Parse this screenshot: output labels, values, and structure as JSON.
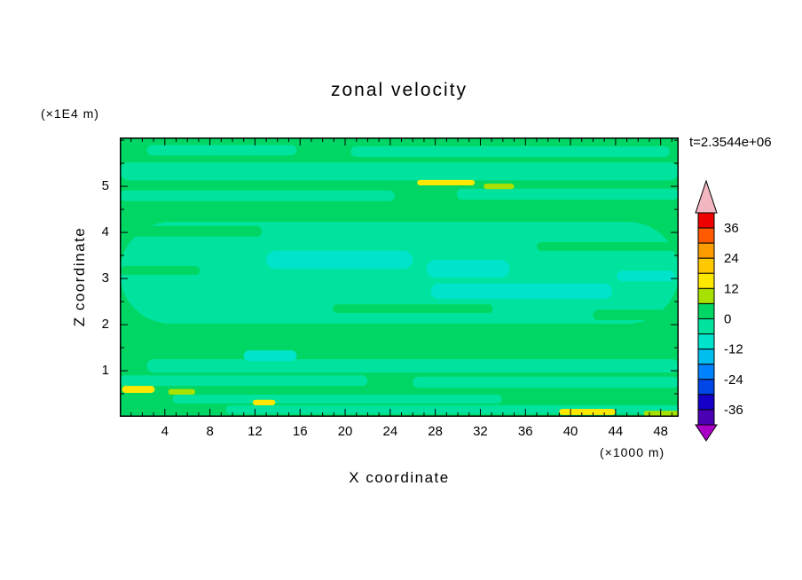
{
  "title": "zonal velocity",
  "labels": {
    "y_unit": "(×1E4 m)",
    "x_unit": "(×1000 m)",
    "time": "t=2.3544e+06",
    "x_axis": "X coordinate",
    "y_axis": "Z coordinate"
  },
  "chart_data": {
    "type": "heatmap",
    "title": "zonal velocity",
    "xlabel": "X coordinate",
    "ylabel": "Z coordinate",
    "x_unit_note": "(×1000 m)",
    "y_unit_note": "(×1E4 m)",
    "time_annotation": "t=2.3544e+06",
    "x_range": [
      0,
      49.6
    ],
    "z_range": [
      0,
      6.06
    ],
    "x_ticks": [
      4,
      8,
      12,
      16,
      20,
      24,
      28,
      32,
      36,
      40,
      44,
      48
    ],
    "x_minor_step": 1,
    "y_ticks": [
      1,
      2,
      3,
      4,
      5
    ],
    "y_minor_step": 0.5,
    "contour_interval": 6,
    "base_band": "green",
    "band_colors": {
      "green": "#00D663",
      "mint": "#00E39E",
      "cyan": "#00E4CC",
      "yellow": "#FFE800",
      "yellow_green": "#A8E000"
    },
    "regions": [
      {
        "x0": 2.4,
        "x1": 15.7,
        "z0": 5.67,
        "z1": 5.9,
        "c": "mint"
      },
      {
        "x0": 20.5,
        "x1": 48.8,
        "z0": 5.64,
        "z1": 5.87,
        "c": "mint"
      },
      {
        "x0": 0,
        "x1": 49.6,
        "z0": 5.13,
        "z1": 5.52,
        "c": "mint"
      },
      {
        "x0": 0,
        "x1": 24.4,
        "z0": 4.68,
        "z1": 4.91,
        "c": "mint"
      },
      {
        "x0": 29.9,
        "x1": 49.6,
        "z0": 4.71,
        "z1": 4.95,
        "c": "mint"
      },
      {
        "x0": 0,
        "x1": 49.6,
        "z0": 2.02,
        "z1": 4.23,
        "c": "mint"
      },
      {
        "x0": 2.4,
        "x1": 49.6,
        "z0": 0.96,
        "z1": 1.25,
        "c": "mint"
      },
      {
        "x0": 0,
        "x1": 22.0,
        "z0": 0.67,
        "z1": 0.9,
        "c": "mint"
      },
      {
        "x0": 26.0,
        "x1": 49.6,
        "z0": 0.63,
        "z1": 0.87,
        "c": "mint"
      },
      {
        "x0": 4.7,
        "x1": 33.9,
        "z0": 0.29,
        "z1": 0.48,
        "c": "mint"
      },
      {
        "x0": 9.4,
        "x1": 49.6,
        "z0": 0.06,
        "z1": 0.25,
        "c": "mint"
      },
      {
        "x0": 0,
        "x1": 12.6,
        "z0": 3.91,
        "z1": 4.14,
        "c": "green"
      },
      {
        "x0": 37.0,
        "x1": 49.6,
        "z0": 3.6,
        "z1": 3.79,
        "c": "green"
      },
      {
        "x0": 0,
        "x1": 7.1,
        "z0": 3.08,
        "z1": 3.27,
        "c": "green"
      },
      {
        "x0": 18.9,
        "x1": 33.1,
        "z0": 2.25,
        "z1": 2.44,
        "c": "green"
      },
      {
        "x0": 42.0,
        "x1": 49.6,
        "z0": 2.1,
        "z1": 2.32,
        "c": "green"
      },
      {
        "x0": 13.0,
        "x1": 26.0,
        "z0": 3.21,
        "z1": 3.6,
        "c": "cyan"
      },
      {
        "x0": 27.2,
        "x1": 34.6,
        "z0": 3.02,
        "z1": 3.4,
        "c": "cyan"
      },
      {
        "x0": 27.6,
        "x1": 43.7,
        "z0": 2.56,
        "z1": 2.89,
        "c": "cyan"
      },
      {
        "x0": 44.1,
        "x1": 49.2,
        "z0": 2.94,
        "z1": 3.17,
        "c": "cyan"
      },
      {
        "x0": 11.0,
        "x1": 15.7,
        "z0": 1.21,
        "z1": 1.44,
        "c": "cyan"
      },
      {
        "x0": 26.4,
        "x1": 31.5,
        "z0": 5.02,
        "z1": 5.14,
        "c": "yellow"
      },
      {
        "x0": 0.2,
        "x1": 3.1,
        "z0": 0.52,
        "z1": 0.67,
        "c": "yellow"
      },
      {
        "x0": 39.0,
        "x1": 44.0,
        "z0": 0.04,
        "z1": 0.17,
        "c": "yellow"
      },
      {
        "x0": 11.8,
        "x1": 13.8,
        "z0": 0.25,
        "z1": 0.37,
        "c": "yellow"
      },
      {
        "x0": 32.3,
        "x1": 35.0,
        "z0": 4.94,
        "z1": 5.06,
        "c": "yellow_green"
      },
      {
        "x0": 46.5,
        "x1": 49.6,
        "z0": 0.02,
        "z1": 0.13,
        "c": "yellow_green"
      },
      {
        "x0": 4.3,
        "x1": 6.7,
        "z0": 0.48,
        "z1": 0.6,
        "c": "yellow_green"
      }
    ],
    "colorbar": {
      "level_max": 42,
      "step": 6,
      "labels": [
        36,
        24,
        12,
        0,
        -12,
        -24,
        -36
      ],
      "colors": [
        "#EE0000",
        "#FF5A00",
        "#FF9C00",
        "#FFC800",
        "#FFE800",
        "#A8E000",
        "#00D663",
        "#00E39E",
        "#00E4CC",
        "#00BEF0",
        "#0082FF",
        "#0046E6",
        "#1400C8",
        "#4B00B4"
      ],
      "arrow_top": "#F2B6C0",
      "arrow_bottom": "#AA00C8"
    }
  }
}
